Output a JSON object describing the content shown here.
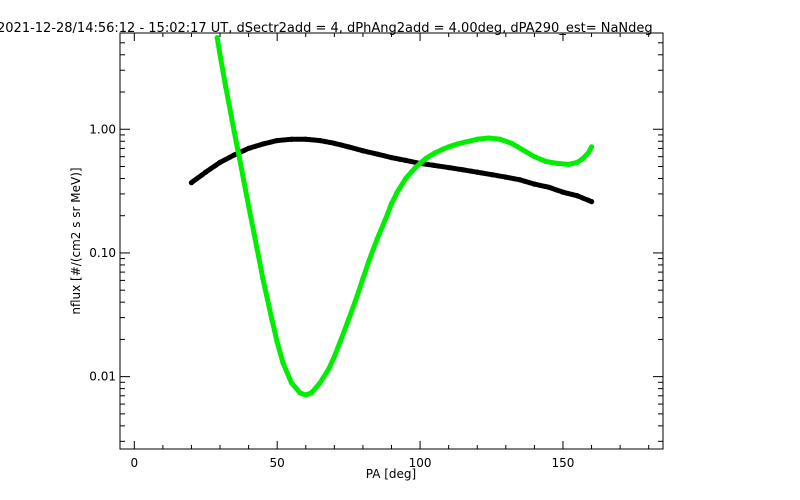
{
  "chart_data": {
    "type": "scatter",
    "title": "2021-12-28/14:56:12 - 15:02:17 UT, dSectr2add = 4, dPhAng2add = 4.00deg, dPA290_est=    NaNdeg",
    "xlabel": "PA [deg]",
    "ylabel": "nflux [#/(cm2 s sr MeV)]",
    "xlim": [
      -5,
      185
    ],
    "ylim": [
      0.0026,
      6.0
    ],
    "yscale": "log",
    "grid": false,
    "xticks": [
      0,
      50,
      100,
      150
    ],
    "xtick_labels": [
      "0",
      "50",
      "100",
      "150"
    ],
    "yticks": [
      0.01,
      0.1,
      1.0
    ],
    "ytick_labels": [
      "0.01",
      "0.10",
      "1.00"
    ],
    "series": [
      {
        "color": "#000000",
        "x": [
          20,
          25,
          30,
          35,
          40,
          45,
          50,
          55,
          60,
          65,
          70,
          75,
          80,
          85,
          90,
          95,
          100,
          105,
          110,
          115,
          120,
          125,
          130,
          135,
          140,
          145,
          150,
          155,
          160
        ],
        "y": [
          0.37,
          0.45,
          0.54,
          0.62,
          0.7,
          0.76,
          0.81,
          0.83,
          0.83,
          0.81,
          0.77,
          0.72,
          0.67,
          0.63,
          0.59,
          0.56,
          0.53,
          0.51,
          0.49,
          0.47,
          0.45,
          0.43,
          0.41,
          0.39,
          0.36,
          0.34,
          0.31,
          0.29,
          0.26
        ]
      },
      {
        "color": "#00ee00",
        "x": [
          29,
          30,
          32,
          35,
          38,
          40,
          42,
          45,
          48,
          50,
          52,
          55,
          58,
          60,
          62,
          65,
          68,
          70,
          72,
          75,
          78,
          80,
          82,
          85,
          88,
          90,
          92,
          95,
          98,
          100,
          102,
          105,
          108,
          110,
          113,
          116,
          120,
          124,
          128,
          132,
          136,
          140,
          144,
          148,
          152,
          155,
          157,
          159,
          160
        ],
        "y": [
          5.5,
          4.0,
          2.2,
          0.95,
          0.42,
          0.24,
          0.14,
          0.062,
          0.03,
          0.019,
          0.013,
          0.0089,
          0.0074,
          0.0071,
          0.0074,
          0.0089,
          0.0115,
          0.0145,
          0.019,
          0.029,
          0.045,
          0.062,
          0.085,
          0.13,
          0.19,
          0.25,
          0.31,
          0.4,
          0.48,
          0.53,
          0.58,
          0.64,
          0.69,
          0.72,
          0.76,
          0.79,
          0.83,
          0.85,
          0.83,
          0.77,
          0.68,
          0.6,
          0.55,
          0.53,
          0.52,
          0.54,
          0.58,
          0.65,
          0.72
        ]
      }
    ]
  }
}
